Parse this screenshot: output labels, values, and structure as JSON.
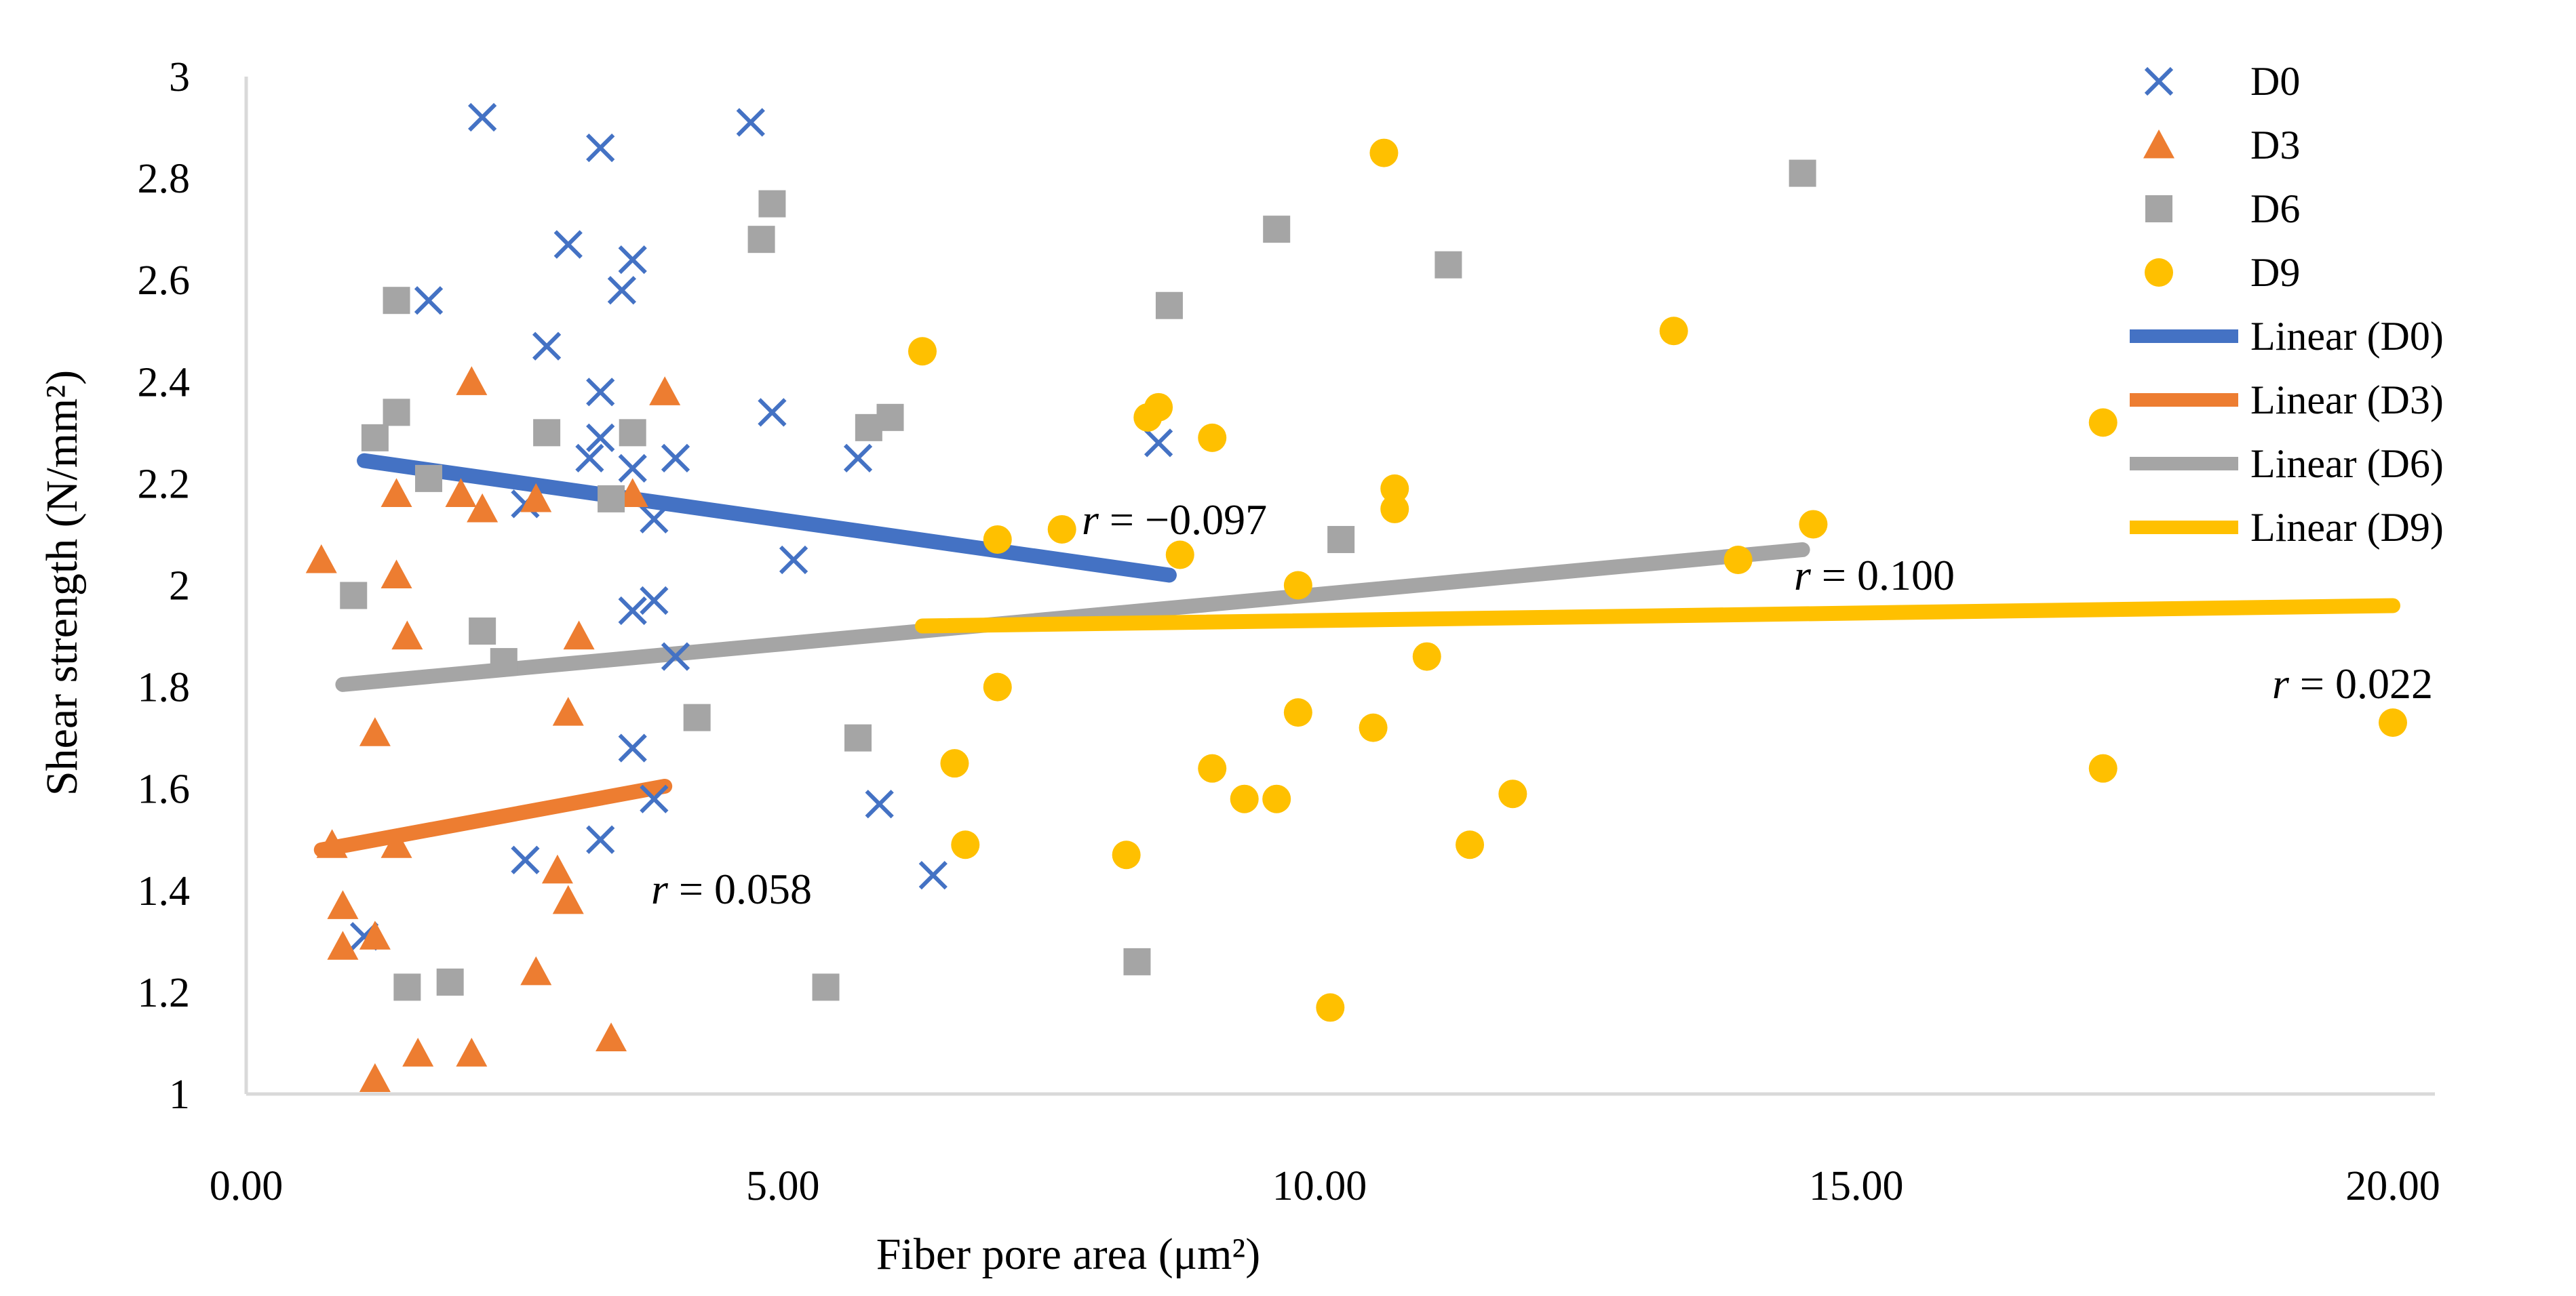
{
  "chart_data": {
    "type": "scatter",
    "title": "",
    "xlabel": "Fiber pore area (μm²)",
    "ylabel": "Shear strength (N/mm²)",
    "xlim": [
      0,
      21
    ],
    "ylim": [
      1,
      3
    ],
    "x_ticks": [
      "0.00",
      "5.00",
      "10.00",
      "15.00",
      "20.00"
    ],
    "y_ticks": [
      "1",
      "1.2",
      "1.4",
      "1.6",
      "1.8",
      "2",
      "2.2",
      "2.4",
      "2.6",
      "2.8",
      "3"
    ],
    "grid": false,
    "legend_position": "right",
    "series": [
      {
        "name": "D0",
        "marker": "x",
        "color": "#4472C4",
        "points": [
          [
            2.2,
            2.92
          ],
          [
            4.7,
            2.91
          ],
          [
            3.3,
            2.86
          ],
          [
            3.0,
            2.67
          ],
          [
            3.6,
            2.64
          ],
          [
            1.7,
            2.56
          ],
          [
            3.5,
            2.58
          ],
          [
            2.8,
            2.47
          ],
          [
            3.3,
            2.38
          ],
          [
            4.9,
            2.34
          ],
          [
            3.3,
            2.29
          ],
          [
            3.2,
            2.25
          ],
          [
            3.6,
            2.23
          ],
          [
            4.0,
            2.25
          ],
          [
            5.7,
            2.25
          ],
          [
            8.5,
            2.28
          ],
          [
            3.8,
            2.13
          ],
          [
            2.6,
            2.16
          ],
          [
            5.1,
            2.05
          ],
          [
            3.8,
            1.97
          ],
          [
            3.6,
            1.95
          ],
          [
            4.0,
            1.86
          ],
          [
            3.6,
            1.68
          ],
          [
            3.8,
            1.58
          ],
          [
            5.9,
            1.57
          ],
          [
            3.3,
            1.5
          ],
          [
            2.6,
            1.46
          ],
          [
            6.4,
            1.43
          ],
          [
            1.1,
            1.31
          ]
        ]
      },
      {
        "name": "D3",
        "marker": "triangle",
        "color": "#ED7D31",
        "points": [
          [
            2.1,
            2.4
          ],
          [
            3.9,
            2.38
          ],
          [
            1.4,
            2.18
          ],
          [
            2.0,
            2.18
          ],
          [
            2.2,
            2.15
          ],
          [
            2.7,
            2.17
          ],
          [
            3.6,
            2.18
          ],
          [
            0.7,
            2.05
          ],
          [
            1.4,
            2.02
          ],
          [
            1.5,
            1.9
          ],
          [
            3.1,
            1.9
          ],
          [
            3.0,
            1.75
          ],
          [
            1.2,
            1.71
          ],
          [
            0.8,
            1.49
          ],
          [
            1.4,
            1.49
          ],
          [
            2.9,
            1.44
          ],
          [
            3.0,
            1.38
          ],
          [
            0.9,
            1.37
          ],
          [
            1.2,
            1.31
          ],
          [
            0.9,
            1.29
          ],
          [
            2.7,
            1.24
          ],
          [
            3.4,
            1.11
          ],
          [
            1.6,
            1.08
          ],
          [
            2.1,
            1.08
          ],
          [
            1.2,
            1.03
          ]
        ]
      },
      {
        "name": "D6",
        "marker": "square",
        "color": "#A5A5A5",
        "points": [
          [
            14.5,
            2.81
          ],
          [
            4.9,
            2.75
          ],
          [
            4.8,
            2.68
          ],
          [
            9.6,
            2.7
          ],
          [
            11.2,
            2.63
          ],
          [
            1.4,
            2.56
          ],
          [
            8.6,
            2.55
          ],
          [
            1.4,
            2.34
          ],
          [
            6.0,
            2.33
          ],
          [
            5.8,
            2.31
          ],
          [
            2.8,
            2.3
          ],
          [
            3.6,
            2.3
          ],
          [
            1.2,
            2.29
          ],
          [
            1.7,
            2.21
          ],
          [
            3.4,
            2.17
          ],
          [
            10.2,
            2.09
          ],
          [
            1.0,
            1.98
          ],
          [
            2.2,
            1.91
          ],
          [
            2.4,
            1.85
          ],
          [
            4.2,
            1.74
          ],
          [
            5.7,
            1.7
          ],
          [
            8.3,
            1.26
          ],
          [
            1.5,
            1.21
          ],
          [
            1.9,
            1.22
          ],
          [
            5.4,
            1.21
          ]
        ]
      },
      {
        "name": "D9",
        "marker": "circle",
        "color": "#FFC000",
        "points": [
          [
            10.6,
            2.85
          ],
          [
            13.3,
            2.5
          ],
          [
            6.3,
            2.46
          ],
          [
            8.5,
            2.35
          ],
          [
            8.4,
            2.33
          ],
          [
            17.3,
            2.32
          ],
          [
            9.0,
            2.29
          ],
          [
            10.7,
            2.19
          ],
          [
            10.7,
            2.15
          ],
          [
            14.6,
            2.12
          ],
          [
            7.6,
            2.11
          ],
          [
            7.0,
            2.09
          ],
          [
            8.7,
            2.06
          ],
          [
            13.9,
            2.05
          ],
          [
            9.8,
            2.0
          ],
          [
            11.0,
            1.86
          ],
          [
            7.0,
            1.8
          ],
          [
            9.8,
            1.75
          ],
          [
            10.5,
            1.72
          ],
          [
            20.0,
            1.73
          ],
          [
            6.6,
            1.65
          ],
          [
            17.3,
            1.64
          ],
          [
            9.0,
            1.64
          ],
          [
            9.3,
            1.58
          ],
          [
            9.6,
            1.58
          ],
          [
            11.8,
            1.59
          ],
          [
            6.7,
            1.49
          ],
          [
            11.4,
            1.49
          ],
          [
            8.2,
            1.47
          ],
          [
            10.1,
            1.17
          ]
        ]
      }
    ],
    "trendlines": [
      {
        "name": "Linear (D0)",
        "color": "#4472C4",
        "x": [
          1.1,
          8.6
        ],
        "y": [
          2.245,
          2.02
        ],
        "r_label": "r = −0.097"
      },
      {
        "name": "Linear (D3)",
        "color": "#ED7D31",
        "x": [
          0.7,
          3.9
        ],
        "y": [
          1.48,
          1.605
        ],
        "r_label": "r = 0.058"
      },
      {
        "name": "Linear (D6)",
        "color": "#A5A5A5",
        "x": [
          0.9,
          14.5
        ],
        "y": [
          1.805,
          2.07
        ],
        "r_label": "r = 0.100"
      },
      {
        "name": "Linear (D9)",
        "color": "#FFC000",
        "x": [
          6.3,
          20.0
        ],
        "y": [
          1.92,
          1.96
        ],
        "r_label": "r = 0.022"
      }
    ]
  }
}
